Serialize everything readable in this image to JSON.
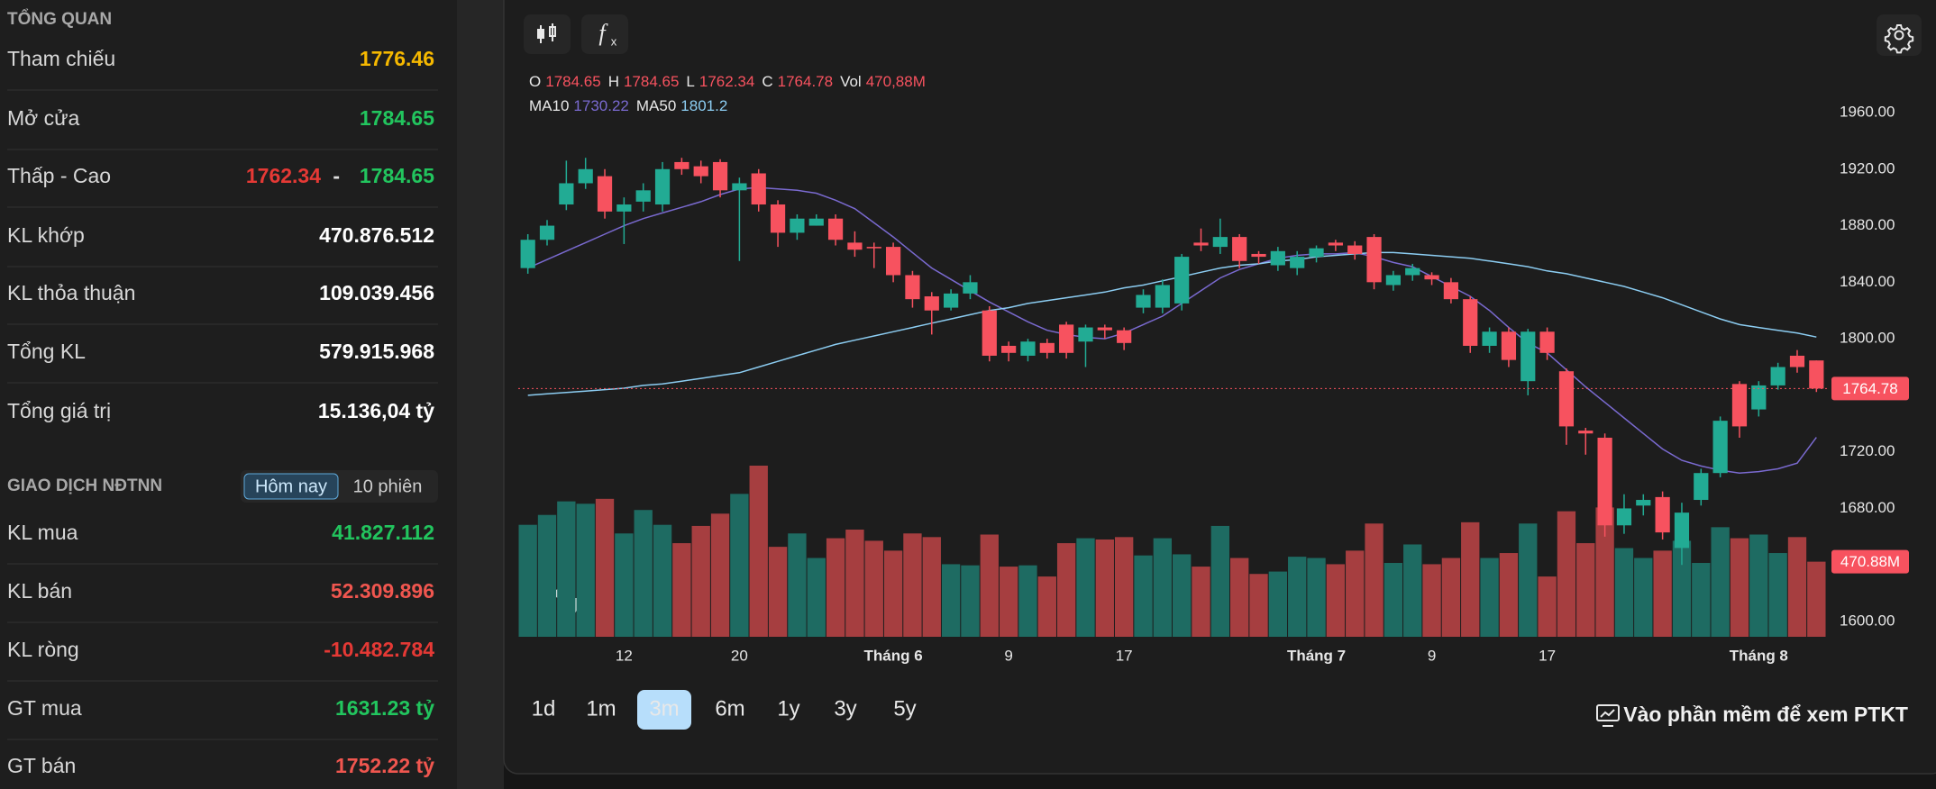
{
  "overview": {
    "title": "TỔNG QUAN",
    "rows": [
      {
        "label": "Tham chiếu",
        "value": "1776.46"
      },
      {
        "label": "Mở cửa",
        "value": "1784.65"
      },
      {
        "label": "Thấp - Cao",
        "low": "1762.34",
        "separator": "-",
        "high": "1784.65"
      },
      {
        "label": "KL khớp",
        "value": "470.876.512"
      },
      {
        "label": "KL thỏa thuận",
        "value": "109.039.456"
      },
      {
        "label": "Tổng KL",
        "value": "579.915.968"
      },
      {
        "label": "Tổng giá trị",
        "value": "15.136,04 tỷ"
      }
    ]
  },
  "foreign": {
    "title": "GIAO DỊCH NĐTNN",
    "tabs": [
      "Hôm nay",
      "10 phiên"
    ],
    "rows": [
      {
        "label": "KL mua",
        "value": "41.827.112"
      },
      {
        "label": "KL bán",
        "value": "52.309.896"
      },
      {
        "label": "KL ròng",
        "value": "-10.482.784"
      },
      {
        "label": "GT mua",
        "value": "1631.23 tỷ"
      },
      {
        "label": "GT bán",
        "value": "1752.22 tỷ"
      }
    ]
  },
  "toolbar": {
    "timeframes": [
      "1d",
      "1m",
      "3m",
      "6m",
      "1y",
      "3y",
      "5y"
    ],
    "selected": "3m",
    "link": "Vào phần mềm để xem PTKT"
  },
  "chart_data": {
    "type": "candlestick",
    "legend_names": {
      "open": "O",
      "high": "H",
      "low": "L",
      "close": "C"
    },
    "up_color": "#22ab94",
    "down_color": "#f7525f",
    "volume_up_color": "#1e6b62",
    "volume_down_color": "#a63e40",
    "categories": [
      null,
      null,
      null,
      null,
      null,
      "12",
      null,
      null,
      null,
      null,
      null,
      "20",
      null,
      null,
      null,
      null,
      null,
      null,
      null,
      "Tháng 6",
      null,
      null,
      null,
      null,
      null,
      "9",
      null,
      null,
      null,
      null,
      null,
      "17",
      null,
      null,
      null,
      null,
      null,
      null,
      null,
      null,
      null,
      "Tháng 7",
      null,
      null,
      null,
      null,
      null,
      "9",
      null,
      null,
      null,
      null,
      null,
      "17",
      null,
      null,
      null,
      null,
      null,
      null,
      null,
      null,
      null,
      null,
      "Tháng 8",
      null,
      null,
      null
    ],
    "open": [
      1850,
      1870,
      1895,
      1910,
      1915,
      1890,
      1897,
      1895,
      1925,
      1922,
      1925,
      1905,
      1917,
      1895,
      1875,
      1880,
      1885,
      1868,
      1865,
      1865,
      1845,
      1830,
      1822,
      1832,
      1820,
      1795,
      1788,
      1797,
      1810,
      1798,
      1808,
      1806,
      1822,
      1822,
      1825,
      1868,
      1865,
      1872,
      1860,
      1852,
      1850,
      1858,
      1868,
      1866,
      1872,
      1838,
      1845,
      1845,
      1840,
      1828,
      1795,
      1805,
      1770,
      1805,
      1777,
      1735,
      1730,
      1668,
      1682,
      1688,
      1652,
      1686,
      1705,
      1768,
      1750,
      1767,
      1788,
      1784.65
    ],
    "high": [
      1874,
      1884,
      1926,
      1928,
      1920,
      1900,
      1910,
      1925,
      1928,
      1926,
      1927,
      1914,
      1920,
      1898,
      1888,
      1888,
      1888,
      1876,
      1868,
      1868,
      1848,
      1833,
      1835,
      1845,
      1823,
      1798,
      1800,
      1800,
      1812,
      1810,
      1810,
      1808,
      1835,
      1842,
      1860,
      1878,
      1885,
      1874,
      1862,
      1865,
      1862,
      1866,
      1870,
      1869,
      1874,
      1848,
      1853,
      1847,
      1843,
      1830,
      1808,
      1808,
      1807,
      1808,
      1779,
      1737,
      1733,
      1690,
      1690,
      1692,
      1684,
      1708,
      1745,
      1770,
      1770,
      1783,
      1792,
      1784.65
    ],
    "low": [
      1846,
      1866,
      1891,
      1906,
      1885,
      1867,
      1890,
      1890,
      1916,
      1910,
      1900,
      1855,
      1890,
      1865,
      1870,
      1880,
      1866,
      1858,
      1850,
      1840,
      1822,
      1803,
      1820,
      1828,
      1784,
      1784,
      1784,
      1786,
      1786,
      1780,
      1800,
      1792,
      1818,
      1818,
      1820,
      1862,
      1860,
      1850,
      1853,
      1848,
      1845,
      1854,
      1862,
      1856,
      1835,
      1834,
      1841,
      1838,
      1825,
      1790,
      1790,
      1780,
      1760,
      1785,
      1725,
      1718,
      1660,
      1662,
      1675,
      1658,
      1640,
      1682,
      1702,
      1730,
      1745,
      1764,
      1776,
      1762.34
    ],
    "close": [
      1870,
      1880,
      1910,
      1920,
      1890,
      1895,
      1905,
      1920,
      1920,
      1915,
      1905,
      1910,
      1895,
      1875,
      1885,
      1885,
      1870,
      1863,
      1864,
      1845,
      1828,
      1820,
      1832,
      1840,
      1788,
      1790,
      1798,
      1790,
      1790,
      1808,
      1806,
      1797,
      1831,
      1838,
      1858,
      1866,
      1872,
      1855,
      1858,
      1862,
      1858,
      1864,
      1866,
      1860,
      1840,
      1845,
      1850,
      1842,
      1828,
      1795,
      1805,
      1785,
      1805,
      1790,
      1738,
      1733,
      1668,
      1680,
      1686,
      1663,
      1677,
      1705,
      1742,
      1738,
      1767,
      1780,
      1780,
      1764.78
    ],
    "volume": {
      "name": "Vol",
      "values": [
        702,
        764,
        849,
        834,
        865,
        648,
        795,
        702,
        587,
        695,
        772,
        896,
        1073,
        564,
        648,
        494,
        618,
        672,
        602,
        540,
        648,
        625,
        455,
        448,
        641,
        440,
        448,
        378,
        587,
        618,
        610,
        625,
        510,
        618,
        517,
        440,
        695,
        494,
        394,
        409,
        502,
        494,
        455,
        540,
        710,
        463,
        579,
        455,
        494,
        718,
        494,
        525,
        710,
        378,
        787,
        587,
        811,
        556,
        494,
        540,
        602,
        463,
        687,
        618,
        641,
        525,
        625,
        470.88
      ],
      "legend_label": "470,88M",
      "tag_label": "470.88M"
    },
    "series": [
      {
        "name": "MA10",
        "color": "#7a6ad0",
        "values": [
          1850,
          1856,
          1862,
          1868,
          1874,
          1880,
          1885,
          1889,
          1893,
          1897,
          1902,
          1906,
          1907,
          1906,
          1905,
          1903,
          1898,
          1892,
          1882,
          1872,
          1861,
          1850,
          1842,
          1834,
          1826,
          1819,
          1812,
          1806,
          1803,
          1801,
          1800,
          1804,
          1810,
          1816,
          1825,
          1834,
          1843,
          1849,
          1853,
          1857,
          1859,
          1860,
          1860,
          1861,
          1858,
          1854,
          1851,
          1844,
          1837,
          1830,
          1820,
          1808,
          1797,
          1790,
          1778,
          1766,
          1755,
          1744,
          1733,
          1722,
          1714,
          1710,
          1707,
          1705,
          1706,
          1708,
          1712,
          1730.22
        ]
      },
      {
        "name": "MA50",
        "color": "#8ccdf2",
        "values": [
          1760,
          1761,
          1762,
          1763,
          1764,
          1765,
          1767,
          1768,
          1770,
          1772,
          1774,
          1776,
          1780,
          1784,
          1788,
          1792,
          1796,
          1799,
          1802,
          1805,
          1808,
          1811,
          1814,
          1817,
          1820,
          1822,
          1825,
          1827,
          1829,
          1831,
          1833,
          1836,
          1838,
          1841,
          1844,
          1847,
          1850,
          1852,
          1853,
          1855,
          1856,
          1858,
          1859,
          1860,
          1861,
          1861,
          1860,
          1859,
          1858,
          1857,
          1855,
          1853,
          1851,
          1848,
          1846,
          1843,
          1840,
          1837,
          1833,
          1829,
          1824,
          1819,
          1814,
          1810,
          1808,
          1806,
          1804,
          1801.2
        ]
      }
    ],
    "ylim": [
      1600,
      1960
    ],
    "yticks": [
      {
        "value": 1600,
        "label": "1600.00"
      },
      {
        "value": 1680,
        "label": "1680.00"
      },
      {
        "value": 1720,
        "label": "1720.00"
      },
      {
        "value": 1800,
        "label": "1800.00"
      },
      {
        "value": 1840,
        "label": "1840.00"
      },
      {
        "value": 1880,
        "label": "1880.00"
      },
      {
        "value": 1920,
        "label": "1920.00"
      },
      {
        "value": 1960,
        "label": "1960.00"
      }
    ],
    "grid": false
  }
}
